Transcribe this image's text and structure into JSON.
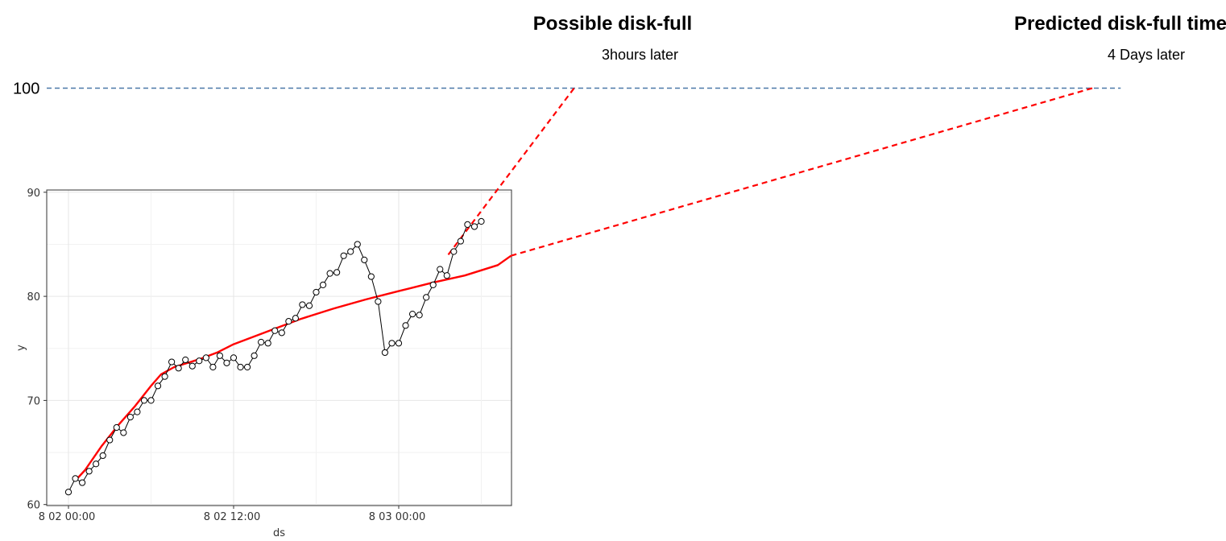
{
  "chart_data": {
    "type": "line",
    "title": "",
    "xlabel": "ds",
    "ylabel": "y",
    "xlim": [
      -0.04,
      1.12
    ],
    "ylim": [
      59.9,
      90.2
    ],
    "grid": true,
    "x_ticks": [
      {
        "value": 0.0,
        "label": "8 02 00:00"
      },
      {
        "value": 0.5,
        "label": "8 02 12:00"
      },
      {
        "value": 1.0,
        "label": "8 03 00:00"
      }
    ],
    "y_ticks": [
      60,
      70,
      80,
      90
    ],
    "series": [
      {
        "name": "",
        "style": "line-with-markers",
        "color": "#000000",
        "x": [
          0.0,
          0.0208,
          0.0417,
          0.0625,
          0.0833,
          0.1042,
          0.125,
          0.1458,
          0.1667,
          0.1875,
          0.2083,
          0.2292,
          0.25,
          0.2708,
          0.2917,
          0.3125,
          0.3333,
          0.3542,
          0.375,
          0.3958,
          0.4167,
          0.4375,
          0.4583,
          0.4792,
          0.5,
          0.5208,
          0.5417,
          0.5625,
          0.5833,
          0.6042,
          0.625,
          0.6458,
          0.6667,
          0.6875,
          0.7083,
          0.7292,
          0.75,
          0.7708,
          0.7917,
          0.8125,
          0.8333,
          0.8542,
          0.875,
          0.8958,
          0.9167,
          0.9375,
          0.9583,
          0.9792,
          1.0,
          1.0208,
          1.0417,
          1.0625,
          1.0833,
          1.1042,
          1.125
        ],
        "y": [
          61.2,
          62.5,
          62.1,
          63.2,
          63.9,
          64.7,
          66.2,
          67.4,
          66.9,
          68.4,
          68.9,
          70.0,
          70.0,
          71.4,
          72.3,
          73.7,
          73.1,
          73.9,
          73.3,
          73.8,
          74.1,
          73.2,
          74.3,
          73.6,
          74.1,
          73.2,
          73.2,
          74.3,
          75.6,
          75.5,
          76.7,
          76.5,
          77.6,
          77.9,
          79.2,
          79.1,
          80.4,
          81.1,
          82.2,
          82.3,
          83.9,
          84.3,
          85.0,
          83.5,
          81.9,
          79.5,
          74.6,
          75.5,
          75.5,
          77.2,
          78.3,
          78.2,
          79.9,
          81.1,
          82.6
        ]
      },
      {
        "name": "",
        "style": "line-with-markers",
        "color": "#000000",
        "x": [
          1.125,
          1.1458,
          1.1667,
          1.1875,
          1.2083,
          1.2292,
          1.25
        ],
        "y": [
          82.6,
          82.0,
          84.3,
          85.3,
          86.9,
          86.7,
          87.2
        ]
      },
      {
        "name": "",
        "style": "line",
        "color": "#ff0000",
        "x": [
          0.0208,
          0.05,
          0.1,
          0.15,
          0.2,
          0.25,
          0.28,
          0.32,
          0.36,
          0.4,
          0.45,
          0.5,
          0.6,
          0.7,
          0.8,
          0.9,
          1.0,
          1.1,
          1.2,
          1.3,
          1.34
        ],
        "y": [
          62.3,
          63.3,
          65.6,
          67.6,
          69.4,
          71.4,
          72.5,
          73.2,
          73.6,
          74.0,
          74.6,
          75.4,
          76.6,
          77.8,
          78.8,
          79.7,
          80.5,
          81.3,
          82.0,
          83.0,
          83.9
        ]
      }
    ],
    "projection_lines": [
      {
        "style": "dashed",
        "color": "#ff0000",
        "from": {
          "x": 1.15,
          "y": 84.0
        },
        "to": {
          "x": 1.531,
          "y": 100.0
        }
      },
      {
        "style": "dashed",
        "color": "#ff0000",
        "from": {
          "x": 1.34,
          "y": 83.9
        },
        "to": {
          "x": 3.1,
          "y": 100.0
        }
      }
    ],
    "reference_line": {
      "value": 100,
      "label": "100",
      "style": "dashed",
      "color": "#4a78a8",
      "x_to": 3.186
    },
    "annotations": [
      {
        "title": "Possible disk-full",
        "subtitle": "3hours later",
        "x": 1.55
      },
      {
        "title": "Predicted disk-full time",
        "subtitle": "4 Days later",
        "x": 3.0
      }
    ]
  }
}
